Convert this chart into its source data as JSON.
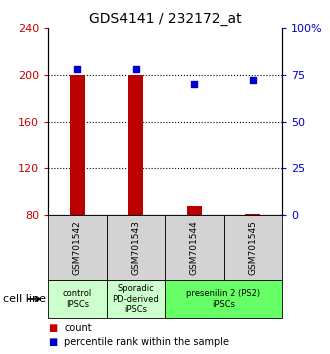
{
  "title": "GDS4141 / 232172_at",
  "samples": [
    "GSM701542",
    "GSM701543",
    "GSM701544",
    "GSM701545"
  ],
  "bar_values": [
    200,
    200,
    88,
    81
  ],
  "bar_base": 80,
  "bar_color": "#bb0000",
  "dot_values": [
    78,
    78,
    70,
    72
  ],
  "dot_color": "#0000cc",
  "ylim_left": [
    80,
    240
  ],
  "ylim_right": [
    0,
    100
  ],
  "yticks_left": [
    80,
    120,
    160,
    200,
    240
  ],
  "yticks_right": [
    0,
    25,
    50,
    75,
    100
  ],
  "yticklabels_right": [
    "0",
    "25",
    "50",
    "75",
    "100%"
  ],
  "left_axis_color": "#cc0000",
  "right_axis_color": "#0000cc",
  "grid_yticks": [
    120,
    160,
    200
  ],
  "groups": [
    {
      "start": 0,
      "end": 0,
      "label": "control\nIPSCs",
      "color": "#ccffcc"
    },
    {
      "start": 1,
      "end": 1,
      "label": "Sporadic\nPD-derived\niPSCs",
      "color": "#ccffcc"
    },
    {
      "start": 2,
      "end": 3,
      "label": "presenilin 2 (PS2)\niPSCs",
      "color": "#66ff66"
    }
  ],
  "sample_box_color": "#d3d3d3",
  "legend_count_color": "#cc0000",
  "legend_pct_color": "#0000cc",
  "cell_line_label": "cell line"
}
